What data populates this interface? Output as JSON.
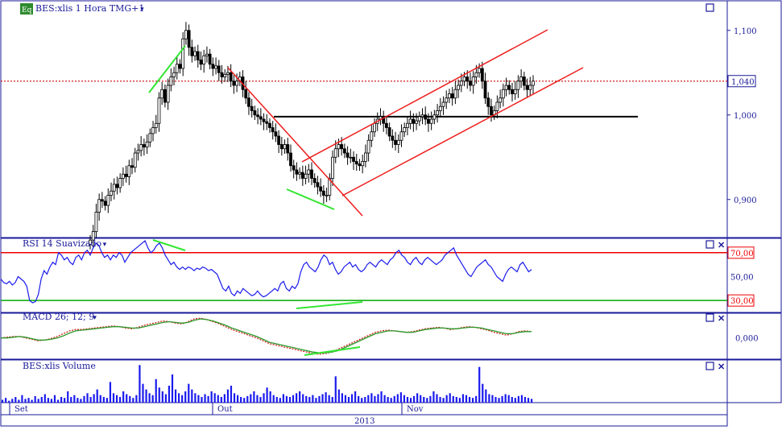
{
  "chart_data": [
    {
      "type": "candlestick",
      "title": "BES:xlis 1 Hora TMG+1",
      "badge": "Eq",
      "yticks": [
        "1,100",
        "1,000",
        "0,900"
      ],
      "ytick_values": [
        1.1,
        1.0,
        0.9
      ],
      "ylim": [
        0.855,
        1.135
      ],
      "last_price_label": "1,040",
      "last_price": 1.04,
      "support_level": 0.998,
      "ohlc_close": [
        0.852,
        0.862,
        0.885,
        0.9,
        0.898,
        0.893,
        0.905,
        0.91,
        0.918,
        0.914,
        0.925,
        0.93,
        0.927,
        0.94,
        0.938,
        0.955,
        0.958,
        0.965,
        0.962,
        0.968,
        0.978,
        0.985,
        0.99,
        1.02,
        1.03,
        1.015,
        1.035,
        1.045,
        1.05,
        1.06,
        1.055,
        1.09,
        1.1,
        1.08,
        1.07,
        1.075,
        1.065,
        1.06,
        1.07,
        1.072,
        1.06,
        1.055,
        1.058,
        1.05,
        1.045,
        1.048,
        1.05,
        1.04,
        1.035,
        1.04,
        1.045,
        1.03,
        1.02,
        1.01,
        1.005,
        1.0,
        0.998,
        0.995,
        0.992,
        0.99,
        0.985,
        0.98,
        0.975,
        0.965,
        0.96,
        0.965,
        0.955,
        0.94,
        0.935,
        0.93,
        0.932,
        0.925,
        0.93,
        0.935,
        0.925,
        0.92,
        0.915,
        0.91,
        0.905,
        0.905,
        0.925,
        0.95,
        0.96,
        0.965,
        0.96,
        0.955,
        0.95,
        0.95,
        0.945,
        0.942,
        0.94,
        0.945,
        0.955,
        0.97,
        0.98,
        0.99,
        0.995,
        0.998,
        0.99,
        0.985,
        0.975,
        0.97,
        0.965,
        0.97,
        0.98,
        0.985,
        0.99,
        0.995,
        0.99,
        0.993,
        0.998,
        1.0,
        0.995,
        0.99,
        0.995,
        1.0,
        1.005,
        1.01,
        1.015,
        1.02,
        1.025,
        1.02,
        1.03,
        1.035,
        1.04,
        1.045,
        1.04,
        1.035,
        1.045,
        1.05,
        1.055,
        1.04,
        1.02,
        1.01,
        1.0,
        1.005,
        1.015,
        1.02,
        1.03,
        1.035,
        1.03,
        1.025,
        1.03,
        1.04,
        1.045,
        1.035,
        1.03,
        1.035,
        1.04
      ],
      "x_ticks": [
        "Set",
        "Out",
        "Nov"
      ],
      "x_axis_title": "2013"
    },
    {
      "type": "line",
      "title": "RSI 14 Suavizado",
      "levels": [
        70,
        50,
        30
      ],
      "level_labels": [
        "70,00",
        "50,00",
        "30,00"
      ],
      "ylim": [
        20,
        82
      ],
      "values": [
        48,
        45,
        44,
        46,
        43,
        45,
        50,
        48,
        46,
        42,
        30,
        28,
        29,
        35,
        48,
        55,
        52,
        58,
        62,
        60,
        70,
        68,
        64,
        66,
        62,
        60,
        66,
        68,
        64,
        70,
        72,
        68,
        74,
        78,
        76,
        70,
        66,
        68,
        64,
        68,
        66,
        70,
        68,
        62,
        66,
        70,
        72,
        74,
        76,
        78,
        80,
        74,
        70,
        72,
        76,
        78,
        74,
        68,
        64,
        60,
        62,
        58,
        56,
        58,
        56,
        58,
        57,
        55,
        57,
        56,
        58,
        57,
        55,
        56,
        54,
        52,
        46,
        40,
        38,
        42,
        36,
        34,
        38,
        36,
        40,
        38,
        36,
        34,
        35,
        38,
        35,
        33,
        34,
        36,
        38,
        40,
        38,
        44,
        46,
        40,
        38,
        42,
        40,
        44,
        54,
        60,
        62,
        58,
        56,
        54,
        58,
        64,
        68,
        66,
        60,
        62,
        56,
        52,
        54,
        58,
        60,
        62,
        58,
        60,
        56,
        54,
        56,
        60,
        62,
        60,
        58,
        62,
        64,
        62,
        60,
        64,
        66,
        70,
        72,
        68,
        66,
        62,
        60,
        64,
        66,
        62,
        60,
        64,
        66,
        64,
        62,
        60,
        62,
        64,
        68,
        70,
        72,
        74,
        68,
        64,
        60,
        56,
        52,
        50,
        54,
        58,
        60,
        62,
        64,
        60,
        58,
        54,
        50,
        48,
        46,
        52,
        56,
        58,
        56,
        54,
        60,
        62,
        58,
        54,
        56
      ],
      "annotations": []
    },
    {
      "type": "line",
      "title": "MACD 26; 12; 9",
      "tick_label": "0,000",
      "ylim": [
        -0.03,
        0.035
      ],
      "series": [
        {
          "values": [
            0.0,
            0.001,
            0.002,
            0.002,
            0.0,
            -0.002,
            -0.004,
            -0.003,
            -0.001,
            0.002,
            0.006,
            0.01,
            0.012,
            0.012,
            0.013,
            0.014,
            0.015,
            0.016,
            0.017,
            0.016,
            0.014,
            0.013,
            0.015,
            0.018,
            0.02,
            0.022,
            0.024,
            0.023,
            0.021,
            0.02,
            0.023,
            0.027,
            0.028,
            0.026,
            0.023,
            0.02,
            0.016,
            0.012,
            0.009,
            0.006,
            0.003,
            0.0,
            -0.004,
            -0.008,
            -0.01,
            -0.012,
            -0.014,
            -0.016,
            -0.018,
            -0.02,
            -0.022,
            -0.023,
            -0.022,
            -0.02,
            -0.016,
            -0.012,
            -0.008,
            -0.004,
            0.0,
            0.004,
            0.008,
            0.01,
            0.011,
            0.01,
            0.009,
            0.008,
            0.009,
            0.011,
            0.013,
            0.014,
            0.015,
            0.014,
            0.012,
            0.013,
            0.015,
            0.016,
            0.015,
            0.013,
            0.011,
            0.008,
            0.006,
            0.004,
            0.006,
            0.009,
            0.01,
            0.009
          ]
        },
        {
          "values": [
            0.0,
            0.0,
            0.001,
            0.002,
            0.001,
            -0.001,
            -0.003,
            -0.003,
            -0.002,
            0.0,
            0.003,
            0.007,
            0.01,
            0.011,
            0.012,
            0.013,
            0.014,
            0.015,
            0.016,
            0.016,
            0.015,
            0.014,
            0.014,
            0.016,
            0.018,
            0.02,
            0.022,
            0.023,
            0.022,
            0.021,
            0.022,
            0.025,
            0.027,
            0.026,
            0.024,
            0.021,
            0.018,
            0.014,
            0.011,
            0.008,
            0.005,
            0.002,
            -0.002,
            -0.006,
            -0.008,
            -0.01,
            -0.012,
            -0.014,
            -0.016,
            -0.018,
            -0.02,
            -0.021,
            -0.021,
            -0.02,
            -0.018,
            -0.014,
            -0.01,
            -0.006,
            -0.002,
            0.002,
            0.006,
            0.008,
            0.01,
            0.01,
            0.009,
            0.008,
            0.008,
            0.01,
            0.012,
            0.013,
            0.014,
            0.014,
            0.013,
            0.013,
            0.014,
            0.015,
            0.015,
            0.014,
            0.012,
            0.01,
            0.008,
            0.006,
            0.006,
            0.008,
            0.009,
            0.009
          ]
        }
      ]
    },
    {
      "type": "bar",
      "title": "BES:xlis Volume",
      "values": [
        3,
        5,
        2,
        4,
        6,
        3,
        8,
        4,
        5,
        3,
        7,
        4,
        6,
        9,
        5,
        4,
        8,
        3,
        6,
        5,
        12,
        6,
        8,
        5,
        4,
        7,
        10,
        6,
        9,
        14,
        8,
        6,
        5,
        22,
        10,
        8,
        6,
        12,
        9,
        7,
        5,
        8,
        40,
        20,
        14,
        10,
        8,
        25,
        16,
        12,
        9,
        18,
        30,
        14,
        10,
        8,
        12,
        20,
        14,
        10,
        8,
        6,
        9,
        7,
        12,
        10,
        8,
        6,
        9,
        14,
        18,
        10,
        8,
        6,
        5,
        7,
        9,
        12,
        8,
        6,
        10,
        16,
        12,
        8,
        6,
        5,
        9,
        7,
        6,
        8,
        10,
        12,
        9,
        7,
        6,
        8,
        5,
        7,
        9,
        11,
        8,
        6,
        28,
        14,
        10,
        8,
        6,
        9,
        12,
        7,
        5,
        6,
        8,
        10,
        7,
        9,
        12,
        8,
        6,
        5,
        7,
        9,
        11,
        8,
        6,
        5,
        7,
        10,
        8,
        6,
        5,
        7,
        12,
        9,
        6,
        5,
        8,
        10,
        7,
        6,
        5,
        9,
        8,
        6,
        5,
        7,
        38,
        20,
        14,
        9,
        8,
        6,
        5,
        7,
        9,
        8,
        6,
        5,
        7,
        8,
        6,
        5,
        4
      ]
    }
  ],
  "ui": {
    "close_symbol": "✕"
  }
}
